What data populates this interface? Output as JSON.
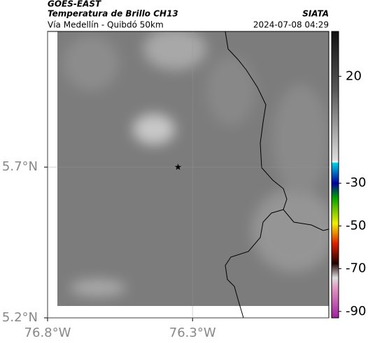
{
  "header": {
    "title": "GOES-EAST",
    "subtitle": "Temperatura de Brillo CH13",
    "region": "Vía Medellín - Quibdó 50km",
    "source": "SIATA",
    "timestamp": "2024-07-08 04:29"
  },
  "map": {
    "xlim": [
      -76.8,
      -75.83
    ],
    "ylim": [
      5.2,
      6.15
    ],
    "xticks": [
      {
        "value": -76.8,
        "label": "76.8°W"
      },
      {
        "value": -76.3,
        "label": "76.3°W"
      }
    ],
    "yticks": [
      {
        "value": 5.2,
        "label": "5.2°N"
      },
      {
        "value": 5.7,
        "label": "5.7°N"
      }
    ],
    "marker": {
      "lon": -76.35,
      "lat": 5.7
    }
  },
  "colorbar": {
    "lim": [
      -93,
      41
    ],
    "ticks": [
      20,
      -30,
      -50,
      -70,
      -90
    ]
  }
}
